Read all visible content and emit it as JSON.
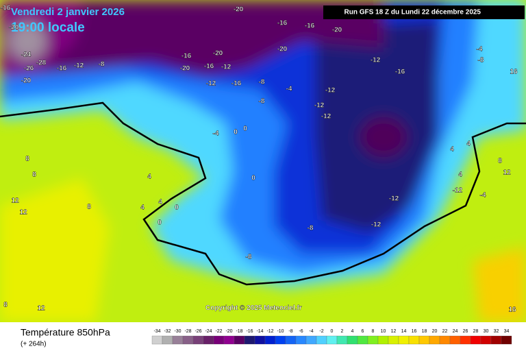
{
  "map": {
    "title": "Vendredi 2 janvier 2026",
    "time": "19:00 locale",
    "run": "Run GFS 18 Z du Lundi 22 décembre 2025",
    "copyright": "Copyright © 2025 Meteociel.fr",
    "variable": "Température 850hPa",
    "lead": "(+ 264h)",
    "isotherm_labels": [
      -16,
      -20,
      -24,
      -26,
      -28,
      -16,
      -12,
      -8,
      -20,
      -16,
      -20,
      -16,
      -20,
      -20,
      -16,
      -20,
      -16,
      -20,
      -12,
      -12,
      -16,
      -8,
      -4,
      -8,
      -12,
      -12,
      -12,
      -16,
      -12,
      -12,
      -12,
      -8,
      -8,
      -4,
      0,
      0,
      0,
      0,
      0,
      4,
      4,
      4,
      8,
      8,
      8,
      12,
      12,
      12,
      16,
      8,
      4,
      4,
      -4,
      -8,
      4,
      8,
      12,
      16,
      -4,
      -12
    ],
    "scale": {
      "values": [
        -34,
        -32,
        -30,
        -28,
        -26,
        -24,
        -22,
        -20,
        -18,
        -16,
        -14,
        -12,
        -10,
        -8,
        -6,
        -4,
        -2,
        0,
        2,
        4,
        6,
        8,
        10,
        12,
        14,
        16,
        18,
        20,
        22,
        24,
        26,
        28,
        30,
        32,
        34
      ],
      "colors": [
        "#d0d0d0",
        "#b0b0b0",
        "#988098",
        "#886088",
        "#784078",
        "#682068",
        "#780078",
        "#900090",
        "#5a0064",
        "#1e1870",
        "#1010a0",
        "#0020d0",
        "#0040f0",
        "#1464f5",
        "#2888ff",
        "#40a8ff",
        "#50d0ff",
        "#60f0f0",
        "#40e8b0",
        "#30e070",
        "#50e840",
        "#80f020",
        "#b0f000",
        "#d8f000",
        "#f0f000",
        "#f8e000",
        "#ffc800",
        "#ffa800",
        "#ff8800",
        "#ff6000",
        "#ff3000",
        "#f00000",
        "#d00000",
        "#a00000",
        "#700000"
      ]
    }
  }
}
